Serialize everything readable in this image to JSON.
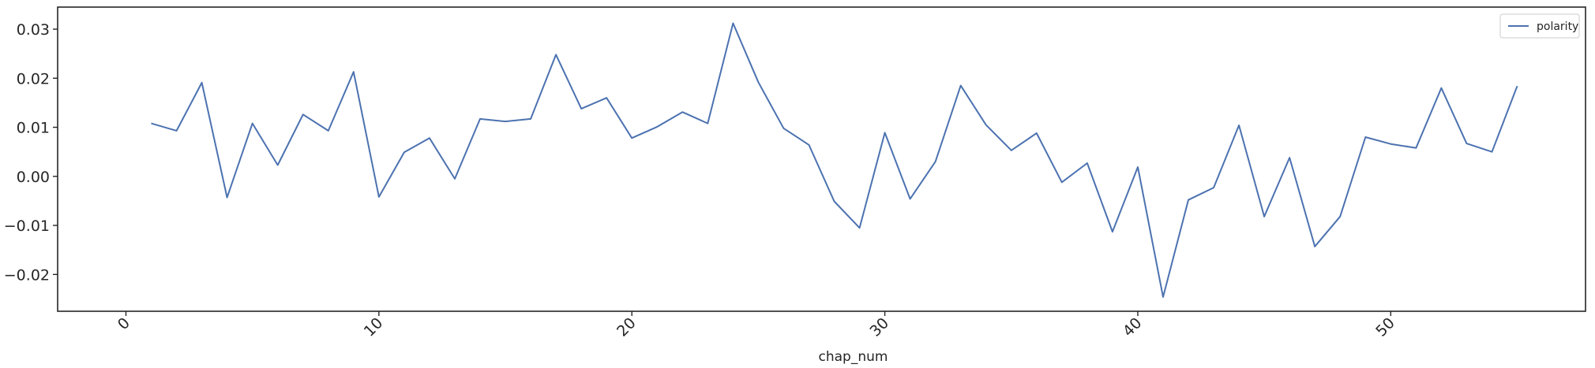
{
  "chart_data": {
    "type": "line",
    "title": "",
    "xlabel": "chap_num",
    "ylabel": "",
    "xlim": [
      -2.7,
      57.7
    ],
    "ylim": [
      -0.0275,
      0.0345
    ],
    "xticks": [
      0,
      10,
      20,
      30,
      40,
      50
    ],
    "xtick_labels": [
      "0",
      "10",
      "20",
      "30",
      "40",
      "50"
    ],
    "yticks": [
      -0.02,
      -0.01,
      0.0,
      0.01,
      0.02,
      0.03
    ],
    "ytick_labels": [
      "−0.02",
      "−0.01",
      "0.00",
      "0.01",
      "0.02",
      "0.03"
    ],
    "xtick_rotation": 45,
    "grid": false,
    "legend_position": "top-right",
    "colors": {
      "polarity": "#4c72b0",
      "axes": "#262626",
      "legend_border": "#cccccc"
    },
    "x": [
      1,
      2,
      3,
      4,
      5,
      6,
      7,
      8,
      9,
      10,
      11,
      12,
      13,
      14,
      15,
      16,
      17,
      18,
      19,
      20,
      21,
      22,
      23,
      24,
      25,
      26,
      27,
      28,
      29,
      30,
      31,
      32,
      33,
      34,
      35,
      36,
      37,
      38,
      39,
      40,
      41,
      42,
      43,
      44,
      45,
      46,
      47,
      48,
      49,
      50,
      51,
      52,
      53,
      54,
      55
    ],
    "series": [
      {
        "name": "polarity",
        "values": [
          0.0108,
          0.0093,
          0.0191,
          -0.0043,
          0.0108,
          0.0023,
          0.0126,
          0.0093,
          0.0213,
          -0.0042,
          0.0049,
          0.0078,
          -0.0005,
          0.0117,
          0.0112,
          0.0117,
          0.0248,
          0.0138,
          0.016,
          0.0078,
          0.0101,
          0.0131,
          0.0108,
          0.0312,
          0.0192,
          0.0098,
          0.0064,
          -0.0051,
          -0.0105,
          0.0089,
          -0.0046,
          0.003,
          0.0185,
          0.0105,
          0.0053,
          0.0088,
          -0.0012,
          0.0027,
          -0.0113,
          0.0019,
          -0.0246,
          -0.0048,
          -0.0023,
          0.0104,
          -0.0082,
          0.0038,
          -0.0143,
          -0.0082,
          0.008,
          0.0066,
          0.0058,
          0.018,
          0.0067,
          0.005,
          0.0184
        ]
      }
    ]
  }
}
